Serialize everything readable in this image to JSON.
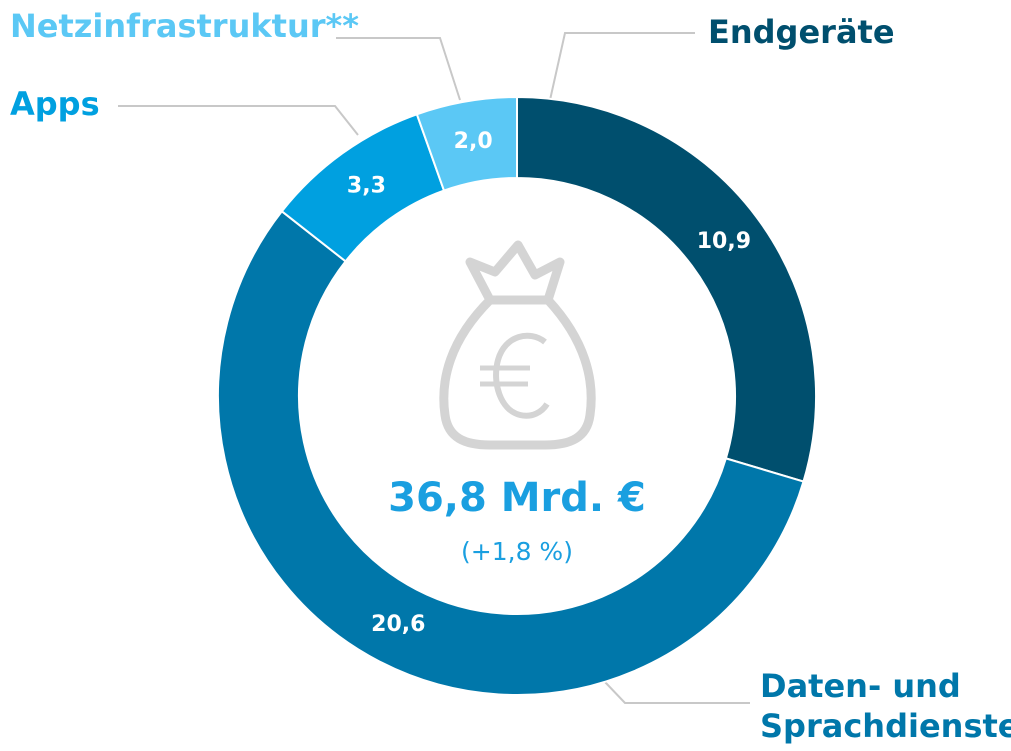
{
  "chart_data": {
    "type": "donut",
    "categories": [
      "Endgeräte",
      "Daten- und Sprachdienste",
      "Apps",
      "Netzinfrastruktur**"
    ],
    "values": [
      10.9,
      20.6,
      3.3,
      2.0
    ],
    "value_labels": [
      "10,9",
      "20,6",
      "3,3",
      "2,0"
    ],
    "colors": [
      "#004f6e",
      "#0077aa",
      "#00a0e0",
      "#5bc8f5"
    ],
    "center_label": "36,8 Mrd. €",
    "center_sublabel": "(+1,8 %)"
  }
}
